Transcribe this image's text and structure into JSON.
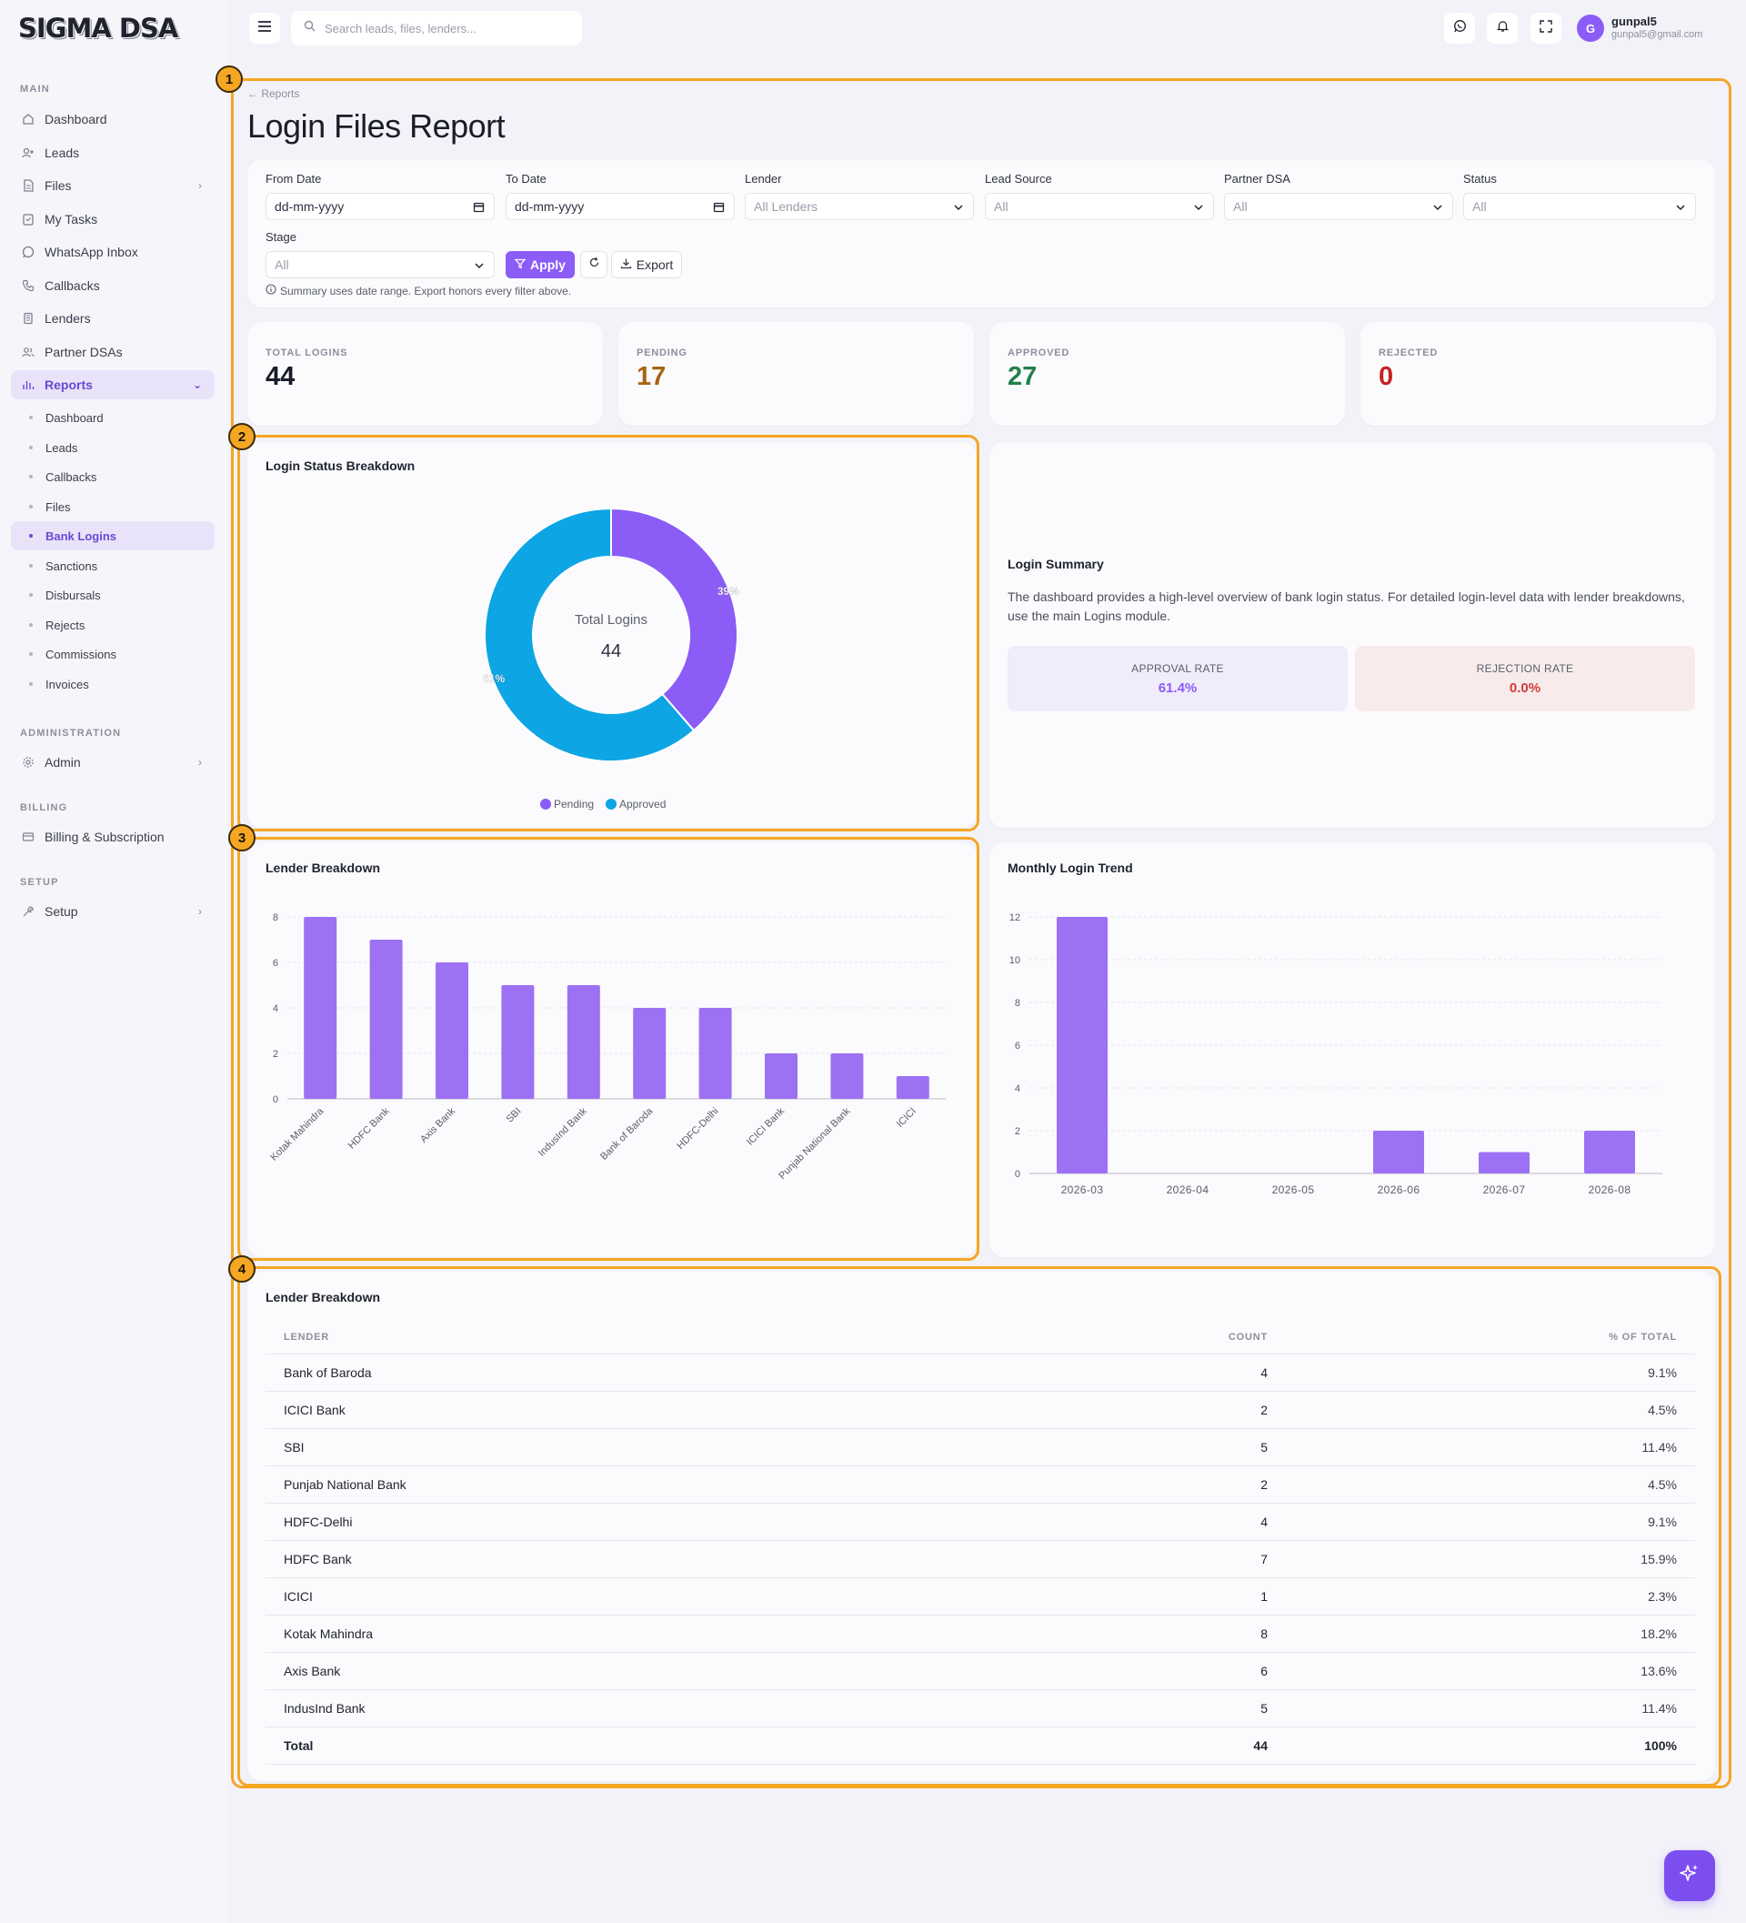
{
  "app": {
    "logo": "SIGMA DSA"
  },
  "sidebar": {
    "sections": {
      "main": "MAIN",
      "administration": "ADMINISTRATION",
      "billing": "BILLING",
      "setup": "SETUP"
    },
    "items": [
      {
        "label": "Dashboard",
        "icon": "home-icon"
      },
      {
        "label": "Leads",
        "icon": "user-plus-icon"
      },
      {
        "label": "Files",
        "icon": "file-icon"
      },
      {
        "label": "My Tasks",
        "icon": "clipboard-icon"
      },
      {
        "label": "WhatsApp Inbox",
        "icon": "whatsapp-icon"
      },
      {
        "label": "Callbacks",
        "icon": "phone-icon"
      },
      {
        "label": "Lenders",
        "icon": "building-icon"
      },
      {
        "label": "Partner DSAs",
        "icon": "users-icon"
      },
      {
        "label": "Reports",
        "icon": "bar-chart-icon"
      }
    ],
    "report_sub": [
      "Dashboard",
      "Leads",
      "Callbacks",
      "Files",
      "Bank Logins",
      "Sanctions",
      "Disbursals",
      "Rejects",
      "Commissions",
      "Invoices"
    ],
    "admin": "Admin",
    "billing": "Billing & Subscription",
    "setup": "Setup"
  },
  "topbar": {
    "search_placeholder": "Search leads, files, lenders...",
    "user": {
      "initial": "G",
      "name": "gunpal5",
      "email": "gunpal5@gmail.com"
    }
  },
  "page": {
    "breadcrumb": "Reports",
    "title": "Login Files Report"
  },
  "filters": {
    "from_date": {
      "label": "From Date",
      "value": "dd-mm-yyyy"
    },
    "to_date": {
      "label": "To Date",
      "value": "dd-mm-yyyy"
    },
    "lender": {
      "label": "Lender",
      "value": "All Lenders"
    },
    "lead_source": {
      "label": "Lead Source",
      "value": "All"
    },
    "partner_dsa": {
      "label": "Partner DSA",
      "value": "All"
    },
    "status": {
      "label": "Status",
      "value": "All"
    },
    "stage": {
      "label": "Stage",
      "value": "All"
    },
    "apply": "Apply",
    "export": "Export",
    "hint": "Summary uses date range. Export honors every filter above."
  },
  "stats": [
    {
      "label": "TOTAL LOGINS",
      "value": "44",
      "color": "#1a1d29"
    },
    {
      "label": "PENDING",
      "value": "17",
      "color": "#a86412"
    },
    {
      "label": "APPROVED",
      "value": "27",
      "color": "#23804a"
    },
    {
      "label": "REJECTED",
      "value": "0",
      "color": "#c42424"
    }
  ],
  "status_card": {
    "title": "Login Status Breakdown",
    "center_label": "Total Logins",
    "center_value": "44"
  },
  "summary_card": {
    "title": "Login Summary",
    "text": "The dashboard provides a high-level overview of bank login status. For detailed login-level data with lender breakdowns, use the main Logins module.",
    "approval_label": "APPROVAL RATE",
    "approval_value": "61.4%",
    "rejection_label": "REJECTION RATE",
    "rejection_value": "0.0%"
  },
  "lender_chart_title": "Lender Breakdown",
  "trend_chart_title": "Monthly Login Trend",
  "table": {
    "title": "Lender Breakdown",
    "headers": [
      "LENDER",
      "COUNT",
      "% OF TOTAL"
    ],
    "rows": [
      [
        "Bank of Baroda",
        "4",
        "9.1%"
      ],
      [
        "ICICI Bank",
        "2",
        "4.5%"
      ],
      [
        "SBI",
        "5",
        "11.4%"
      ],
      [
        "Punjab National Bank",
        "2",
        "4.5%"
      ],
      [
        "HDFC-Delhi",
        "4",
        "9.1%"
      ],
      [
        "HDFC Bank",
        "7",
        "15.9%"
      ],
      [
        "ICICI",
        "1",
        "2.3%"
      ],
      [
        "Kotak Mahindra",
        "8",
        "18.2%"
      ],
      [
        "Axis Bank",
        "6",
        "13.6%"
      ],
      [
        "IndusInd Bank",
        "5",
        "11.4%"
      ]
    ],
    "total": [
      "Total",
      "44",
      "100%"
    ]
  },
  "colors": {
    "accent": "#8b5cf6",
    "bar": "#9d71f4",
    "pending": "#8b5cf6",
    "approved": "#0ea5e4",
    "highlight": "#f5a623"
  },
  "highlights": [
    "1",
    "2",
    "3",
    "4"
  ],
  "chart_data": [
    {
      "type": "pie",
      "title": "Login Status Breakdown",
      "categories": [
        "Pending",
        "Approved"
      ],
      "values": [
        17,
        27
      ],
      "labels": [
        "39%",
        "61%"
      ],
      "legend": "bottom"
    },
    {
      "type": "bar",
      "title": "Lender Breakdown",
      "categories": [
        "Kotak Mahindra",
        "HDFC Bank",
        "Axis Bank",
        "SBI",
        "IndusInd Bank",
        "Bank of Baroda",
        "HDFC-Delhi",
        "ICICI Bank",
        "Punjab National Bank",
        "ICICI"
      ],
      "values": [
        8,
        7,
        6,
        5,
        5,
        4,
        4,
        2,
        2,
        1
      ],
      "yticks": [
        "0",
        "2",
        "4",
        "6",
        "8"
      ],
      "ylim": [
        0,
        8
      ],
      "grid": true
    },
    {
      "type": "bar",
      "title": "Monthly Login Trend",
      "categories": [
        "2026-03",
        "2026-04",
        "2026-05",
        "2026-06",
        "2026-07",
        "2026-08"
      ],
      "values": [
        12,
        0,
        0,
        2,
        1,
        2
      ],
      "yticks": [
        "0",
        "2",
        "4",
        "6",
        "8",
        "10",
        "12"
      ],
      "ylim": [
        0,
        12
      ],
      "grid": true
    }
  ]
}
